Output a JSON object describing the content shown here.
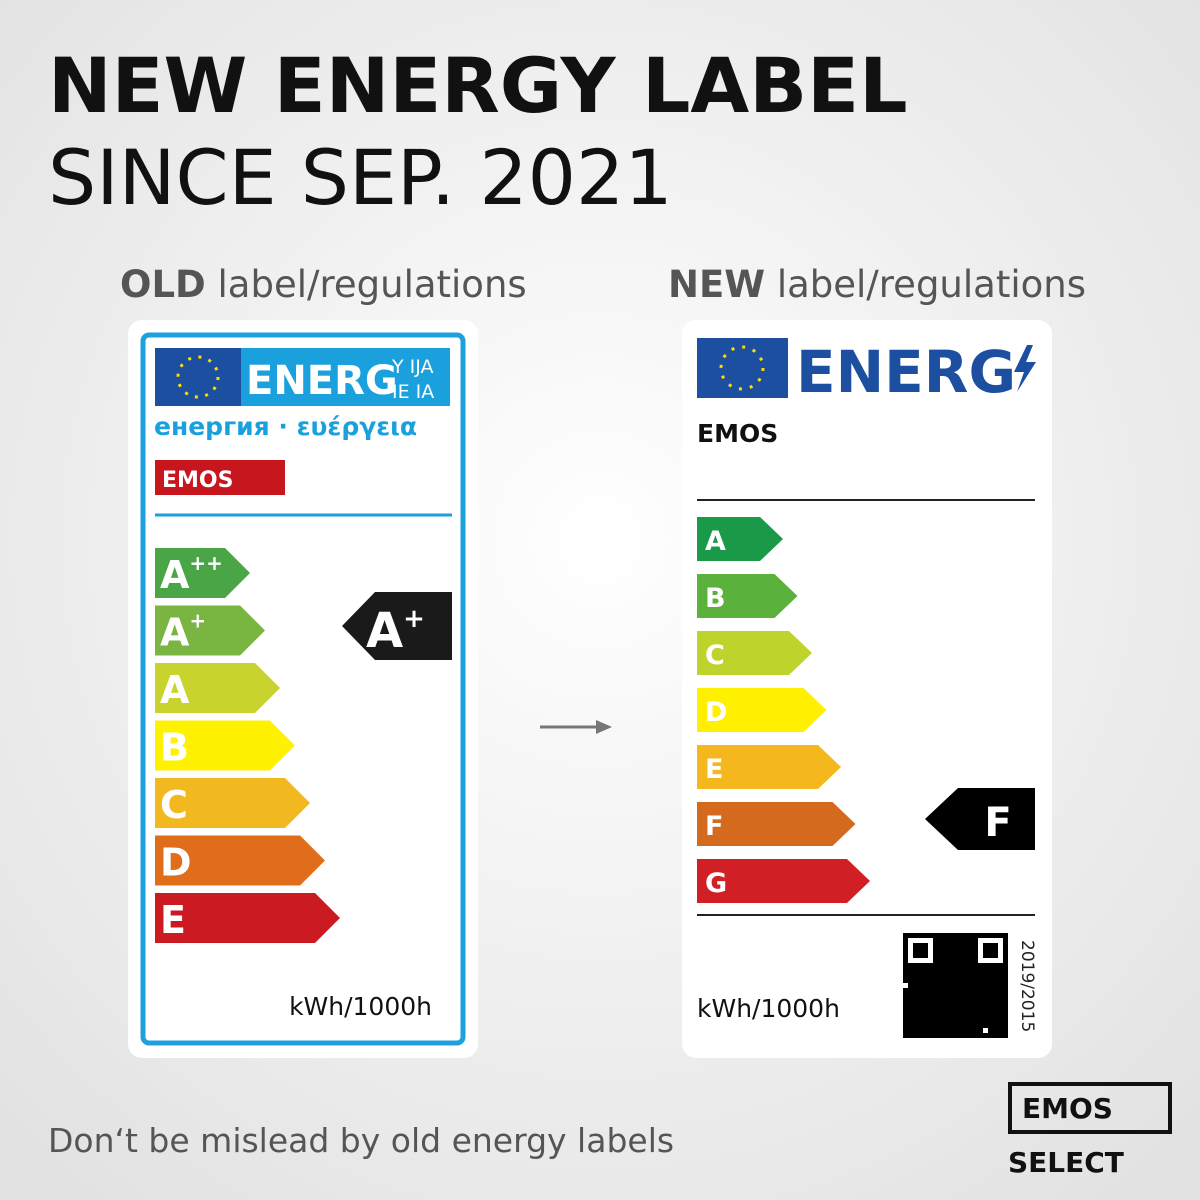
{
  "header": {
    "title": "NEW ENERGY LABEL",
    "subtitle": "SINCE SEP. 2021"
  },
  "old_label": {
    "heading_bold": "OLD",
    "heading_rest": "label/regulations",
    "energy": "ENERG",
    "suffix_top": "Y IJA",
    "suffix_bottom": "IE IA",
    "languages": "енергия · ευέργεια",
    "brand": "EMOS",
    "classes": [
      {
        "letter": "A",
        "sup": "++"
      },
      {
        "letter": "A",
        "sup": "+"
      },
      {
        "letter": "A",
        "sup": ""
      },
      {
        "letter": "B",
        "sup": ""
      },
      {
        "letter": "C",
        "sup": ""
      },
      {
        "letter": "D",
        "sup": ""
      },
      {
        "letter": "E",
        "sup": ""
      }
    ],
    "rating": {
      "letter": "A",
      "sup": "+"
    },
    "unit": "kWh/1000h"
  },
  "new_label": {
    "heading_bold": "NEW",
    "heading_rest": "label/regulations",
    "energy": "ENERG",
    "brand": "EMOS",
    "classes": [
      "A",
      "B",
      "C",
      "D",
      "E",
      "F",
      "G"
    ],
    "rating": "F",
    "unit": "kWh/1000h",
    "regulation": "2019/2015"
  },
  "footer": {
    "note": "Don‘t be mislead by old energy labels",
    "logo": "EMOS",
    "logo_line": "SELECT"
  }
}
